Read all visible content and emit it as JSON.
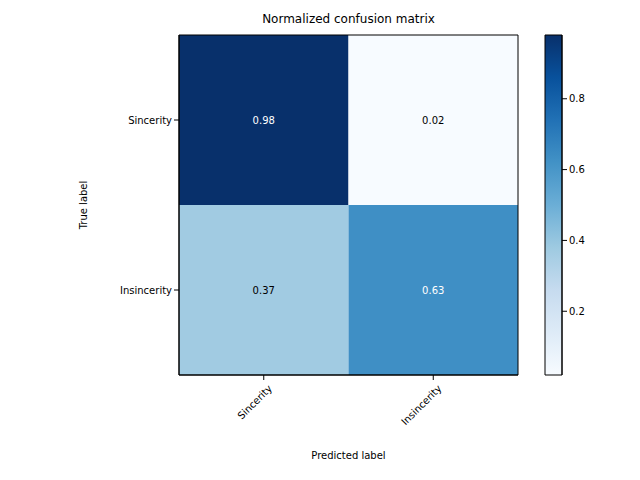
{
  "chart_data": {
    "type": "heatmap",
    "title": "Normalized confusion matrix",
    "x_label": "Predicted label",
    "y_label": "True label",
    "x_categories": [
      "Sincerity",
      "Insincerity"
    ],
    "y_categories": [
      "Sincerity",
      "Insincerity"
    ],
    "cells": [
      [
        0.98,
        0.02
      ],
      [
        0.37,
        0.63
      ]
    ],
    "data_labels": true,
    "colorbar_range": [
      0.02,
      0.98
    ],
    "colorbar_ticks": [
      0.2,
      0.4,
      0.6,
      0.8
    ]
  }
}
